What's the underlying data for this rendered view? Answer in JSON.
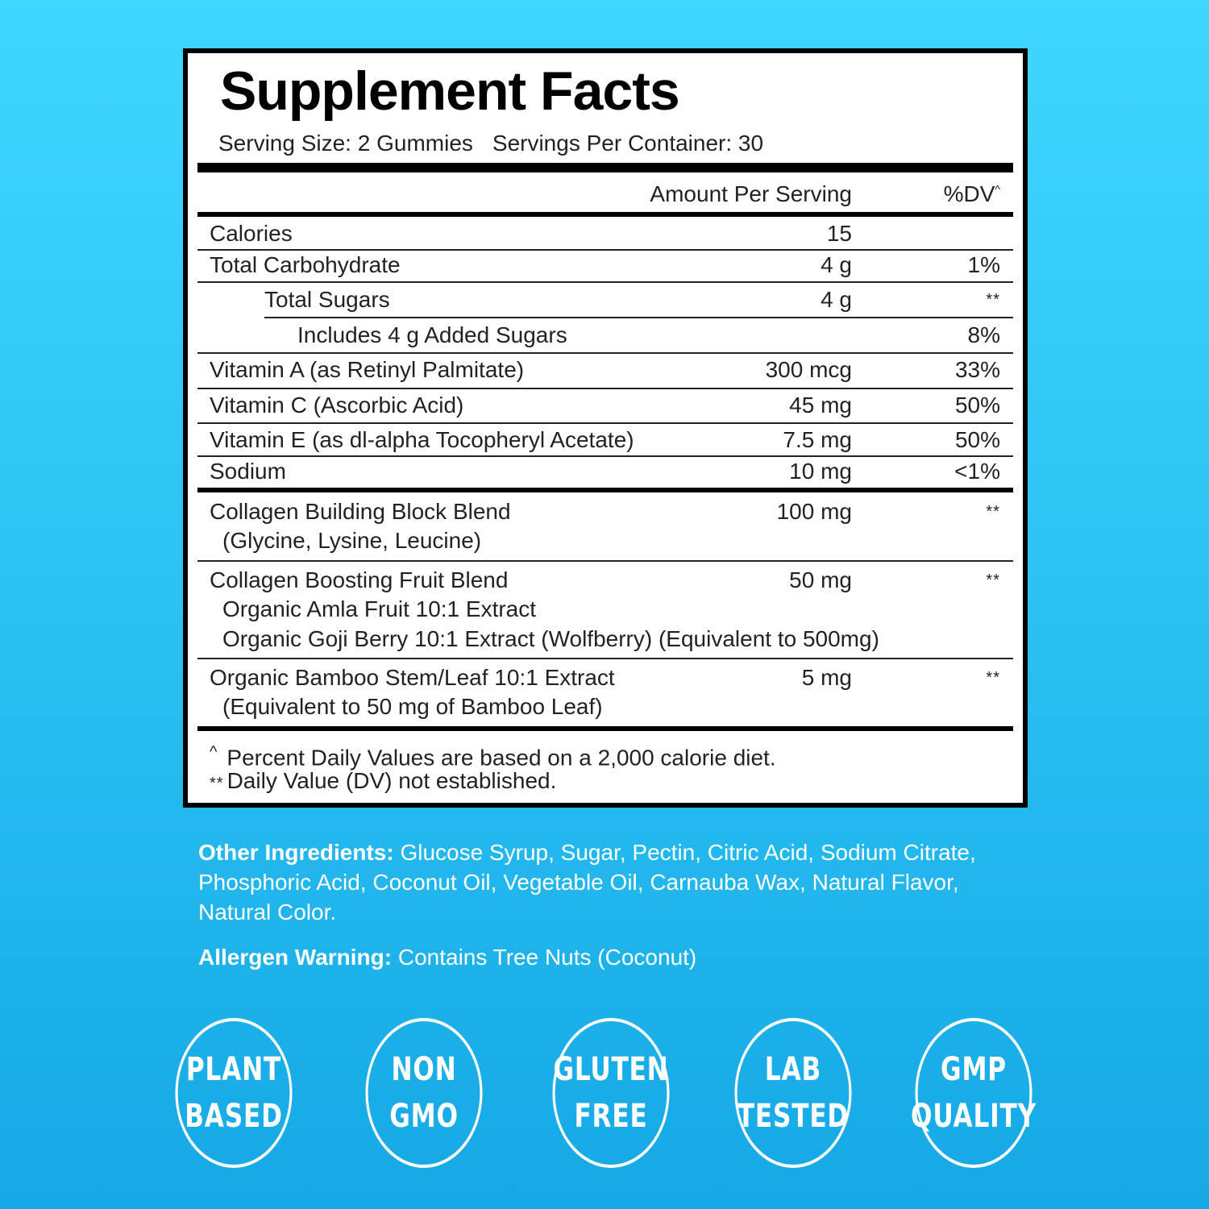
{
  "facts": {
    "title": "Supplement Facts",
    "serving_size": "Serving Size: 2 Gummies",
    "servings_per_container": "Servings Per Container: 30",
    "header_amount": "Amount Per Serving",
    "header_dv": "%DV",
    "header_dv_mark": "^",
    "rows": [
      {
        "name": "Calories",
        "amount": "15",
        "dv": ""
      },
      {
        "name": "Total Carbohydrate",
        "amount": "4 g",
        "dv": "1%"
      },
      {
        "name": "Total Sugars",
        "amount": "4 g",
        "dv": "**"
      },
      {
        "name": "Includes 4 g Added Sugars",
        "amount": "",
        "dv": "8%"
      },
      {
        "name": "Vitamin A (as Retinyl Palmitate)",
        "amount": "300 mcg",
        "dv": "33%"
      },
      {
        "name": "Vitamin C (Ascorbic Acid)",
        "amount": "45 mg",
        "dv": "50%"
      },
      {
        "name": "Vitamin E (as dl-alpha Tocopheryl Acetate)",
        "amount": "7.5 mg",
        "dv": "50%"
      },
      {
        "name": "Sodium",
        "amount": "10 mg",
        "dv": "<1%"
      }
    ],
    "blends": [
      {
        "name": "Collagen Building Block Blend",
        "sub": [
          "(Glycine, Lysine, Leucine)"
        ],
        "amount": "100 mg",
        "dv": "**"
      },
      {
        "name": "Collagen Boosting Fruit Blend",
        "sub": [
          "Organic Amla Fruit 10:1 Extract",
          "Organic Goji Berry 10:1 Extract (Wolfberry) (Equivalent to 500mg)"
        ],
        "amount": "50 mg",
        "dv": "**"
      },
      {
        "name": "Organic Bamboo Stem/Leaf 10:1 Extract",
        "sub": [
          "(Equivalent to 50 mg of Bamboo Leaf)"
        ],
        "amount": "5 mg",
        "dv": "**"
      }
    ],
    "footnote_1_mark": "^",
    "footnote_1": "Percent Daily Values are based on a 2,000 calorie diet.",
    "footnote_2_mark": "**",
    "footnote_2": "Daily Value (DV) not established."
  },
  "other_ingredients": {
    "label": "Other Ingredients:",
    "text": " Glucose Syrup, Sugar, Pectin, Citric Acid, Sodium Citrate, Phosphoric Acid, Coconut Oil, Vegetable Oil, Carnauba Wax, Natural Flavor, Natural Color."
  },
  "allergen": {
    "label": "Allergen Warning:",
    "text": " Contains Tree Nuts (Coconut)"
  },
  "badges": [
    {
      "line1": "PLANT",
      "line2": "BASED"
    },
    {
      "line1": "NON",
      "line2": "GMO"
    },
    {
      "line1": "GLUTEN",
      "line2": "FREE"
    },
    {
      "line1": "LAB",
      "line2": "TESTED"
    },
    {
      "line1": "GMP",
      "line2": "QUALITY"
    }
  ]
}
